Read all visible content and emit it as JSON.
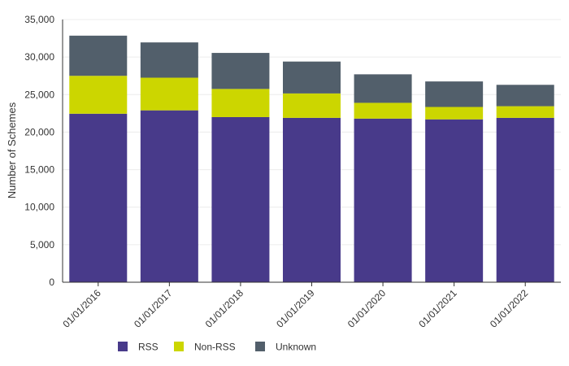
{
  "chart_data": {
    "type": "bar",
    "stacked": true,
    "categories": [
      "01/01/2016",
      "01/01/2017",
      "01/01/2018",
      "01/01/2019",
      "01/01/2020",
      "01/01/2021",
      "01/01/2022"
    ],
    "series": [
      {
        "name": "RSS",
        "color": "#483a8a",
        "values": [
          22450,
          22900,
          22000,
          21900,
          21800,
          21700,
          21900
        ]
      },
      {
        "name": "Non-RSS",
        "color": "#ccd600",
        "values": [
          5050,
          4350,
          3750,
          3250,
          2100,
          1650,
          1550
        ]
      },
      {
        "name": "Unknown",
        "color": "#525f6b",
        "values": [
          5350,
          4700,
          4800,
          4250,
          3800,
          3400,
          2850
        ]
      }
    ],
    "ylabel": "Number of Schemes",
    "ylim": [
      0,
      35000
    ],
    "yticks": [
      0,
      5000,
      10000,
      15000,
      20000,
      25000,
      30000,
      35000
    ],
    "ytick_labels": [
      "0",
      "5,000",
      "10,000",
      "15,000",
      "20,000",
      "25,000",
      "30,000",
      "35,000"
    ],
    "grid": true,
    "legend_position": "bottom-left"
  }
}
